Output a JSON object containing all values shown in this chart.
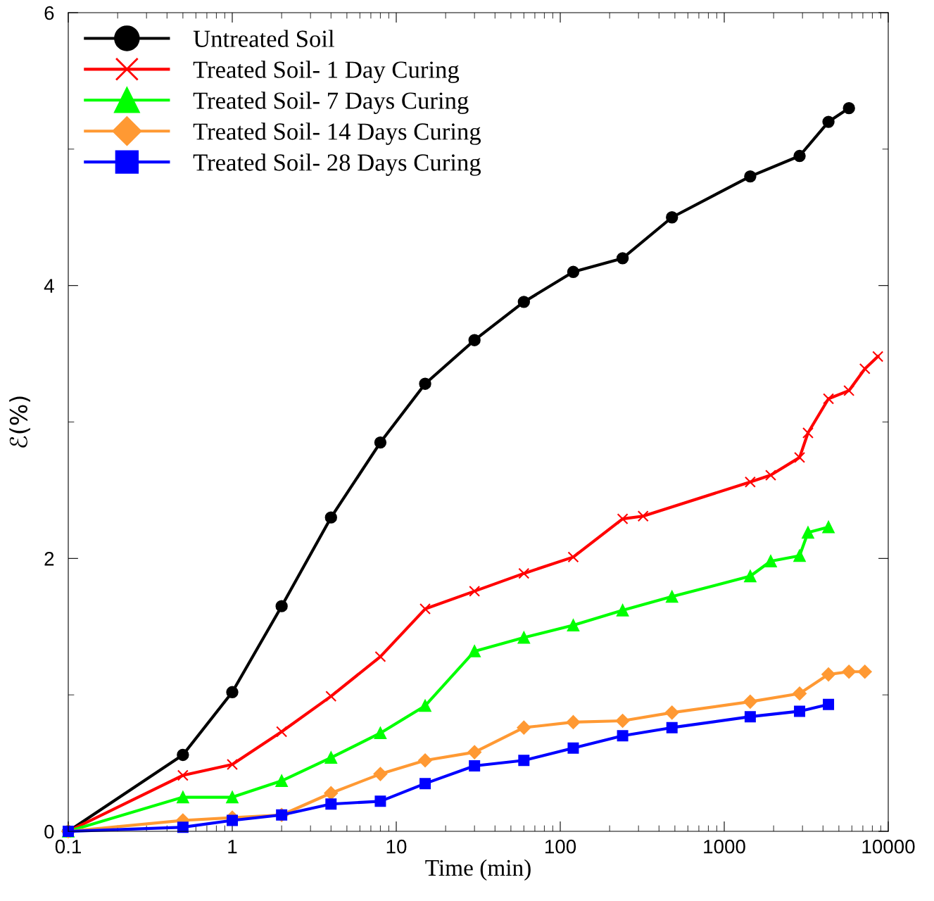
{
  "chart_data": {
    "type": "line",
    "xlabel": "Time (min)",
    "ylabel": "ℰ(%)",
    "log": "x",
    "xlim": [
      0.1,
      10000
    ],
    "xticks": [
      0.1,
      1,
      10,
      100,
      1000,
      10000
    ],
    "ylim": [
      0,
      6
    ],
    "yticks": [
      0,
      2,
      4,
      6
    ],
    "grid": false,
    "legend": "top left",
    "line_style": "solid",
    "series": [
      {
        "name": "Untreated Soil",
        "color": "#000000",
        "marker": "circle",
        "x": [
          0.1,
          0.5,
          1,
          2,
          4,
          8,
          15,
          30,
          60,
          120,
          240,
          480,
          1440,
          2880,
          4320,
          5760
        ],
        "values": [
          0,
          0.56,
          1.02,
          1.65,
          2.3,
          2.85,
          3.28,
          3.6,
          3.88,
          4.1,
          4.2,
          4.5,
          4.8,
          4.95,
          5.2,
          5.3
        ]
      },
      {
        "name": "Treated Soil- 1 Day Curing",
        "color": "#ff0000",
        "marker": "cross",
        "x": [
          0.1,
          0.5,
          1,
          2,
          4,
          8,
          15,
          30,
          60,
          120,
          240,
          320,
          1440,
          1920,
          2880,
          3240,
          4320,
          5760,
          7200,
          8640
        ],
        "values": [
          0,
          0.41,
          0.49,
          0.73,
          0.99,
          1.28,
          1.63,
          1.76,
          1.89,
          2.01,
          2.29,
          2.31,
          2.56,
          2.61,
          2.74,
          2.92,
          3.17,
          3.23,
          3.39,
          3.48
        ]
      },
      {
        "name": "Treated Soil- 7 Days Curing",
        "color": "#00ff00",
        "marker": "triangle",
        "x": [
          0.1,
          0.5,
          1,
          2,
          4,
          8,
          15,
          30,
          60,
          120,
          240,
          480,
          1440,
          1920,
          2880,
          3240,
          4320
        ],
        "values": [
          0,
          0.25,
          0.25,
          0.37,
          0.54,
          0.72,
          0.92,
          1.32,
          1.42,
          1.51,
          1.62,
          1.72,
          1.87,
          1.98,
          2.02,
          2.19,
          2.23
        ]
      },
      {
        "name": "Treated Soil- 14 Days Curing",
        "color": "#ff9933",
        "marker": "diamond",
        "x": [
          0.1,
          0.5,
          1,
          2,
          4,
          8,
          15,
          30,
          60,
          120,
          240,
          480,
          1440,
          2880,
          4320,
          5760,
          7200
        ],
        "values": [
          0,
          0.08,
          0.1,
          0.12,
          0.28,
          0.42,
          0.52,
          0.58,
          0.76,
          0.8,
          0.81,
          0.87,
          0.95,
          1.01,
          1.15,
          1.17,
          1.17
        ]
      },
      {
        "name": "Treated Soil- 28 Days Curing",
        "color": "#0000ff",
        "marker": "square",
        "x": [
          0.1,
          0.5,
          1,
          2,
          4,
          8,
          15,
          30,
          60,
          120,
          240,
          480,
          1440,
          2880,
          4320
        ],
        "values": [
          0,
          0.03,
          0.08,
          0.12,
          0.2,
          0.22,
          0.35,
          0.48,
          0.52,
          0.61,
          0.7,
          0.76,
          0.84,
          0.88,
          0.93
        ]
      }
    ]
  }
}
